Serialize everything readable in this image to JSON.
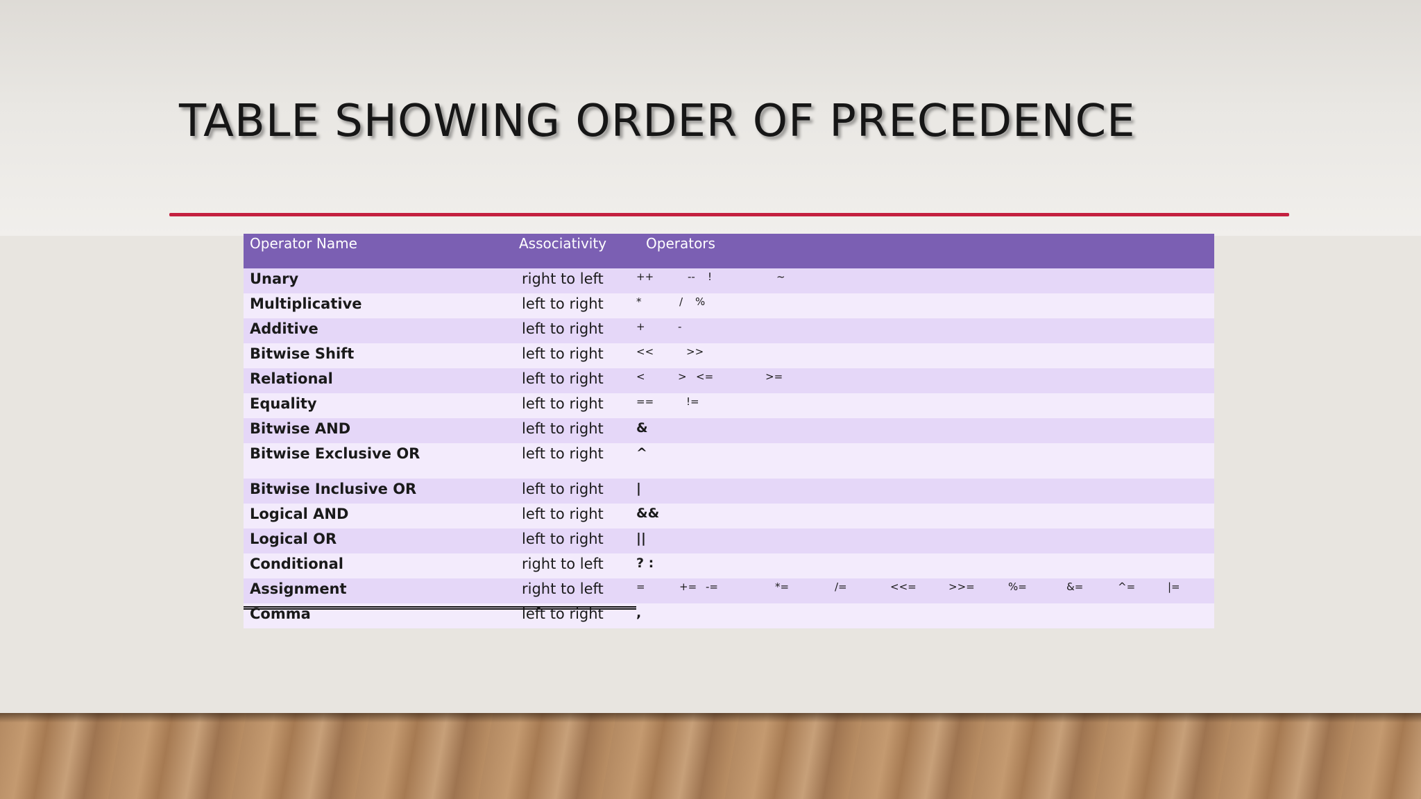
{
  "slide": {
    "title": "TABLE SHOWING ORDER OF PRECEDENCE"
  },
  "table": {
    "headers": {
      "name": "Operator  Name",
      "associativity": "Associativity",
      "operators": "Operators"
    },
    "rows": [
      {
        "name": "Unary",
        "associativity": "right to left",
        "operators": [
          "++",
          "--",
          "!",
          "~"
        ]
      },
      {
        "name": "Multiplicative",
        "associativity": "left to right",
        "operators": [
          "*",
          "/",
          "%"
        ]
      },
      {
        "name": "Additive",
        "associativity": "left to right",
        "operators": [
          "+",
          "-"
        ]
      },
      {
        "name": "Bitwise Shift",
        "associativity": "left to right",
        "operators": [
          "<<",
          ">>"
        ]
      },
      {
        "name": "Relational",
        "associativity": "left to right",
        "operators": [
          "<",
          ">",
          "<=",
          ">="
        ]
      },
      {
        "name": "Equality",
        "associativity": "left to right",
        "operators": [
          "==",
          "!="
        ]
      },
      {
        "name": "Bitwise AND",
        "associativity": "left to right",
        "operators": [
          "&"
        ]
      },
      {
        "name": "Bitwise Exclusive OR",
        "associativity": "left to right",
        "operators": [
          "^"
        ]
      },
      {
        "name": "Bitwise Inclusive OR",
        "associativity": "left to right",
        "operators": [
          "|"
        ]
      },
      {
        "name": "Logical AND",
        "associativity": "left to right",
        "operators": [
          "&&"
        ]
      },
      {
        "name": "Logical OR",
        "associativity": "left to right",
        "operators": [
          "||"
        ]
      },
      {
        "name": "Conditional",
        "associativity": "right to left",
        "operators": [
          "? :"
        ]
      },
      {
        "name": "Assignment",
        "associativity": "right to left",
        "operators": [
          "=",
          "+=",
          "-=",
          "*=",
          "/=",
          "<<=",
          ">>=",
          "%=",
          "&=",
          "^=",
          "|="
        ]
      },
      {
        "name": "Comma",
        "associativity": "left to right",
        "operators": [
          ","
        ]
      }
    ]
  },
  "colors": {
    "header_bg": "#7b5fb3",
    "row_odd": "#e5d7f8",
    "row_even": "#f3ebfc",
    "accent_rule": "#c4203f"
  }
}
